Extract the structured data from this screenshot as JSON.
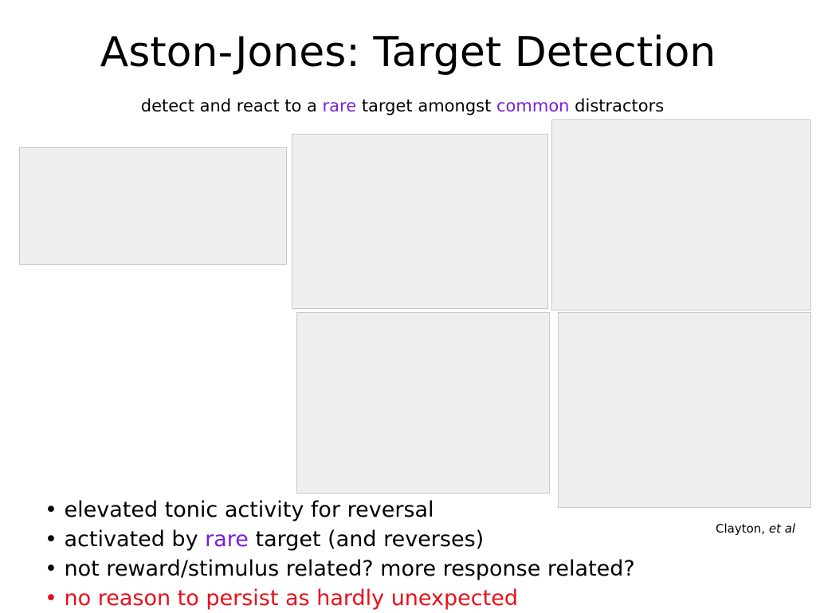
{
  "title": "Aston-Jones: Target Detection",
  "subtitle": {
    "p1": "detect and react to a ",
    "rare": "rare",
    "p2": " target amongst ",
    "common": "common",
    "p3": " distractors"
  },
  "colors": {
    "highlight_purple": "#7a1fd6",
    "warning_red": "#e8101a"
  },
  "figures": [
    {
      "name": "tonic-activity-trace-figure"
    },
    {
      "name": "target-response-histogram-figure"
    },
    {
      "name": "clayton-stimulus-aligned-figure"
    },
    {
      "name": "hit-fa-miss-reject-figure"
    },
    {
      "name": "clayton-response-aligned-figure"
    }
  ],
  "bullets": [
    {
      "pre": "• elevated tonic activity for reversal",
      "hl": "",
      "post": ""
    },
    {
      "pre": "• activated by ",
      "hl": "rare",
      "post": " target (and reverses)"
    },
    {
      "pre": "• not reward/stimulus related? more response related?",
      "hl": "",
      "post": ""
    },
    {
      "pre": "• no reason to persist as hardly unexpected",
      "hl": "",
      "post": ""
    }
  ],
  "citation": {
    "author": "Clayton, ",
    "etal": "et al"
  }
}
